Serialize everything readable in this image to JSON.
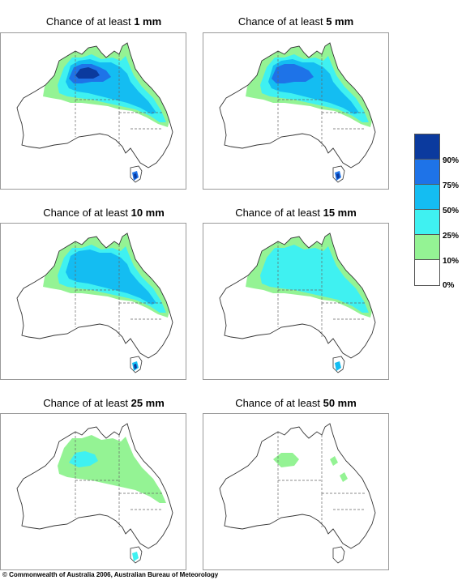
{
  "panels": [
    {
      "prefix": "Chance of at least ",
      "amount": "1 mm",
      "level": 4
    },
    {
      "prefix": "Chance of at least ",
      "amount": "5 mm",
      "level": 3
    },
    {
      "prefix": "Chance of at least ",
      "amount": "10 mm",
      "level": 2
    },
    {
      "prefix": "Chance of at least ",
      "amount": "15 mm",
      "level": 1
    },
    {
      "prefix": "Chance of at least ",
      "amount": "25 mm",
      "level": 0
    },
    {
      "prefix": "Chance of at least ",
      "amount": "50 mm",
      "level": -1
    }
  ],
  "legend": {
    "colors": [
      "#0b3a9e",
      "#1e73e8",
      "#14bdf2",
      "#3ff1f1",
      "#94f394",
      "#ffffff"
    ],
    "labels": [
      "90%",
      "75%",
      "50%",
      "25%",
      "10%",
      "0%"
    ]
  },
  "copyright": "© Commonwealth of Australia 2006, Australian Bureau of Meteorology"
}
